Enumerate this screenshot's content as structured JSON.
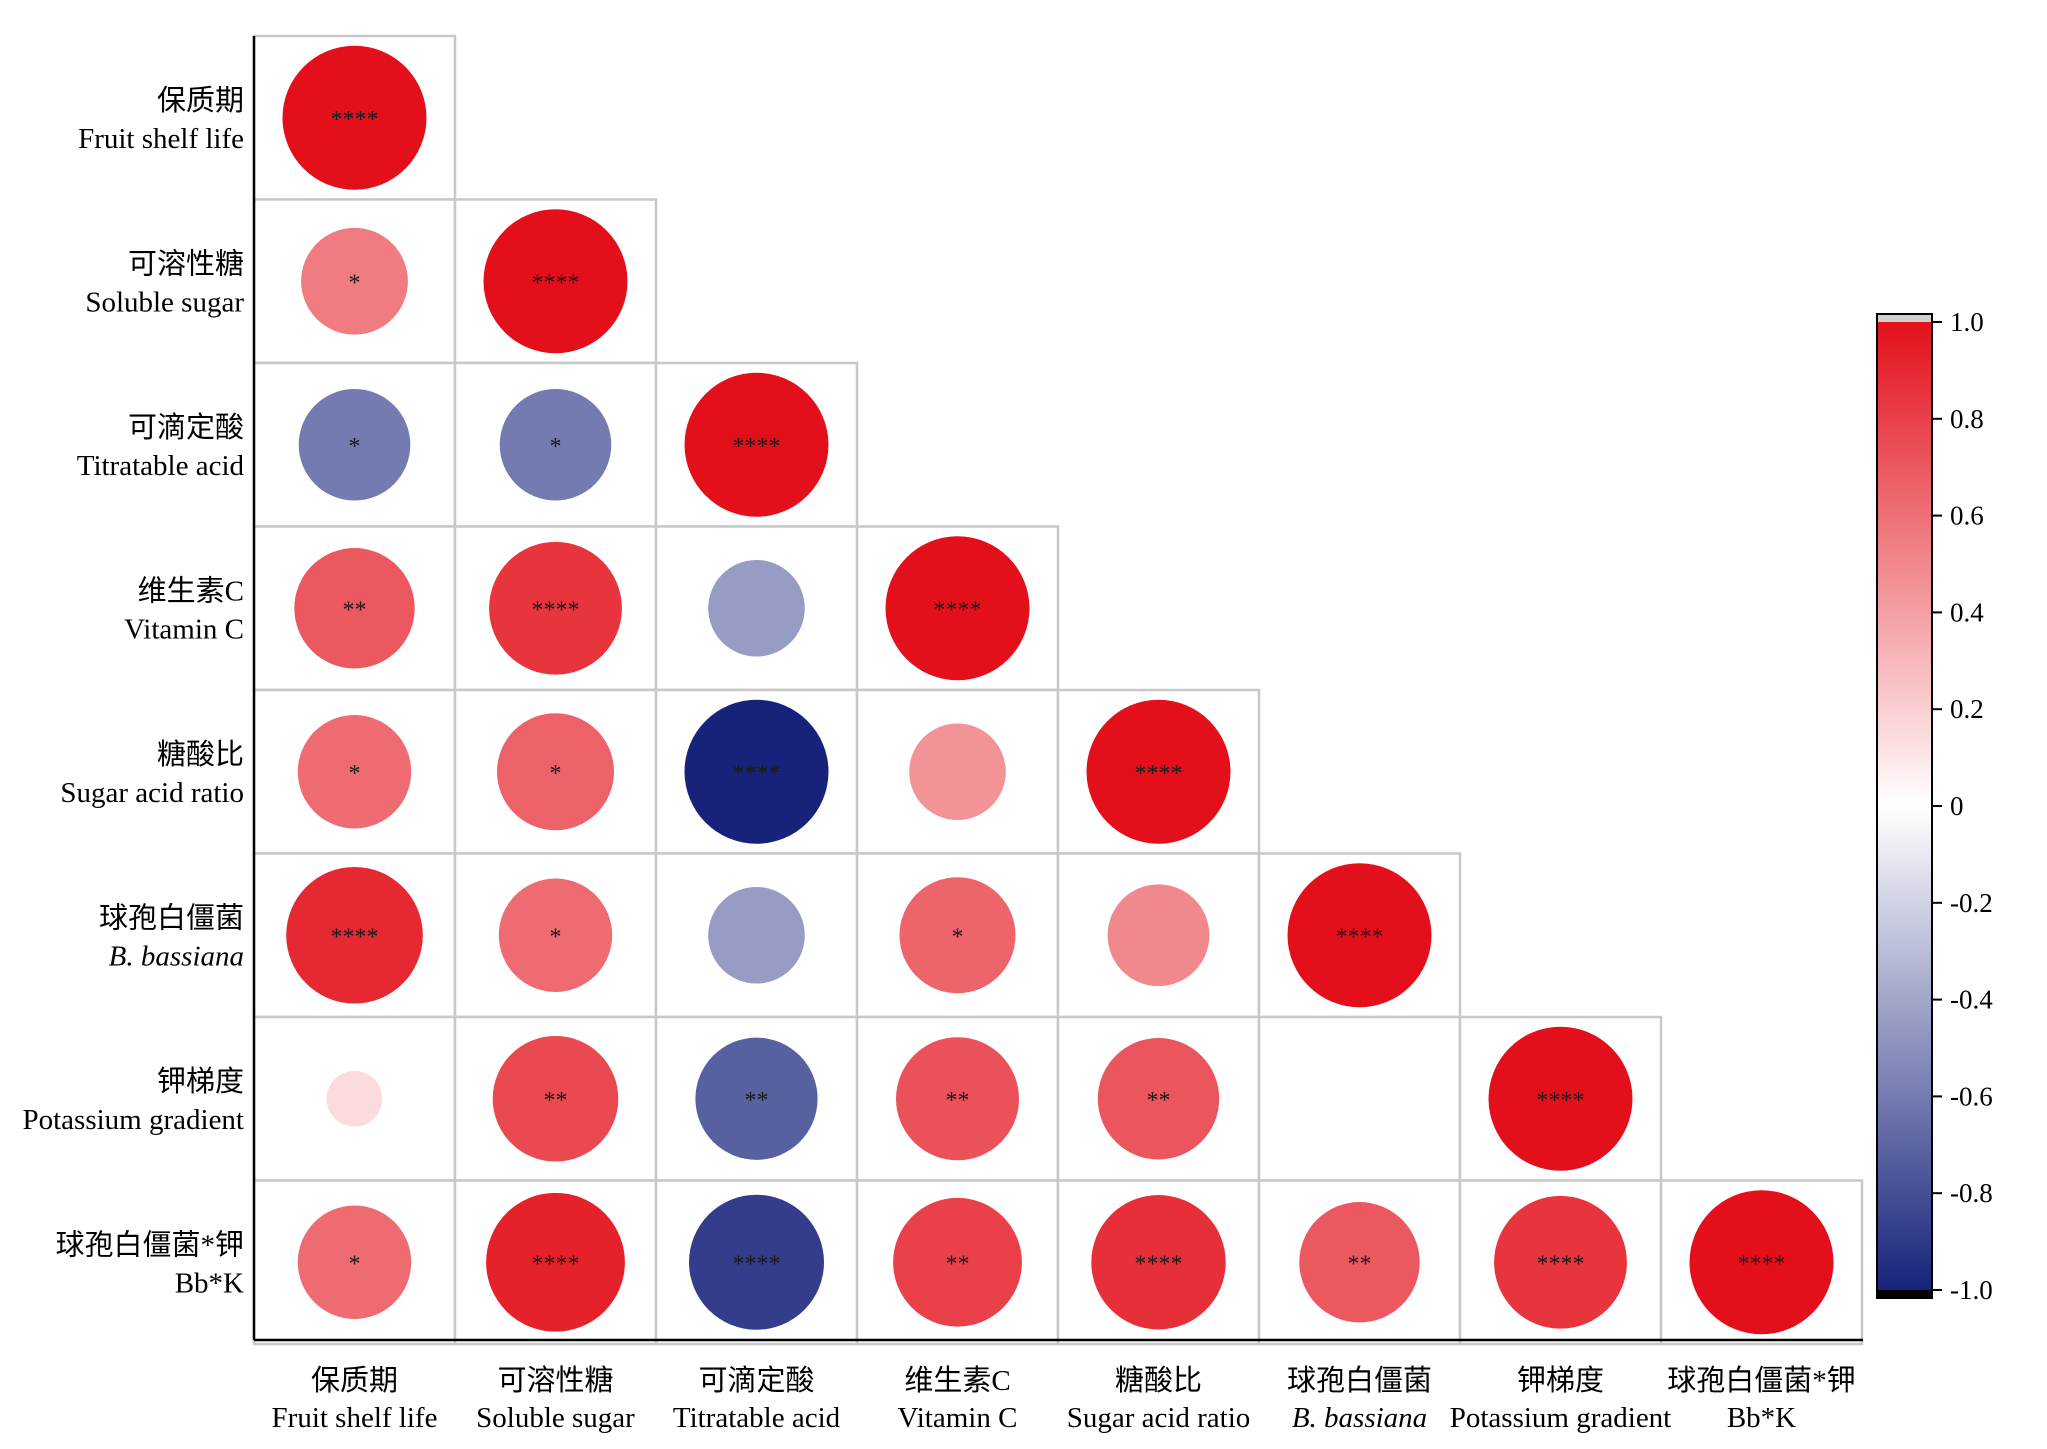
{
  "chart_data": {
    "type": "heatmap",
    "subtype": "correlation-lower-triangle-circles",
    "variables": [
      {
        "zh": "保质期",
        "en": "Fruit shelf life",
        "italic": false
      },
      {
        "zh": "可溶性糖",
        "en": "Soluble sugar",
        "italic": false
      },
      {
        "zh": "可滴定酸",
        "en": "Titratable acid",
        "italic": false
      },
      {
        "zh": "维生素C",
        "en": "Vitamin C",
        "italic": false
      },
      {
        "zh": "糖酸比",
        "en": "Sugar acid ratio",
        "italic": false
      },
      {
        "zh": "球孢白僵菌",
        "en": "B. bassiana",
        "italic": true
      },
      {
        "zh": "钾梯度",
        "en": "Potassium gradient",
        "italic": false
      },
      {
        "zh": "球孢白僵菌*钾",
        "en": "Bb*K",
        "italic": false
      }
    ],
    "cells": [
      {
        "row": 0,
        "col": 0,
        "value": 1.0,
        "sig": "****"
      },
      {
        "row": 1,
        "col": 0,
        "value": 0.55,
        "sig": "*"
      },
      {
        "row": 1,
        "col": 1,
        "value": 1.0,
        "sig": "****"
      },
      {
        "row": 2,
        "col": 0,
        "value": -0.6,
        "sig": "*"
      },
      {
        "row": 2,
        "col": 1,
        "value": -0.6,
        "sig": "*"
      },
      {
        "row": 2,
        "col": 2,
        "value": 1.0,
        "sig": "****"
      },
      {
        "row": 3,
        "col": 0,
        "value": 0.7,
        "sig": "**"
      },
      {
        "row": 3,
        "col": 1,
        "value": 0.85,
        "sig": "****"
      },
      {
        "row": 3,
        "col": 2,
        "value": -0.45,
        "sig": ""
      },
      {
        "row": 3,
        "col": 3,
        "value": 1.0,
        "sig": "****"
      },
      {
        "row": 4,
        "col": 0,
        "value": 0.62,
        "sig": "*"
      },
      {
        "row": 4,
        "col": 1,
        "value": 0.66,
        "sig": "*"
      },
      {
        "row": 4,
        "col": 2,
        "value": -1.0,
        "sig": "****"
      },
      {
        "row": 4,
        "col": 3,
        "value": 0.45,
        "sig": ""
      },
      {
        "row": 4,
        "col": 4,
        "value": 1.0,
        "sig": "****"
      },
      {
        "row": 5,
        "col": 0,
        "value": 0.9,
        "sig": "****"
      },
      {
        "row": 5,
        "col": 1,
        "value": 0.62,
        "sig": "*"
      },
      {
        "row": 5,
        "col": 2,
        "value": -0.45,
        "sig": ""
      },
      {
        "row": 5,
        "col": 3,
        "value": 0.65,
        "sig": "*"
      },
      {
        "row": 5,
        "col": 4,
        "value": 0.5,
        "sig": ""
      },
      {
        "row": 5,
        "col": 5,
        "value": 1.0,
        "sig": "****"
      },
      {
        "row": 6,
        "col": 0,
        "value": 0.15,
        "sig": ""
      },
      {
        "row": 6,
        "col": 1,
        "value": 0.76,
        "sig": "**"
      },
      {
        "row": 6,
        "col": 2,
        "value": -0.72,
        "sig": "**"
      },
      {
        "row": 6,
        "col": 3,
        "value": 0.73,
        "sig": "**"
      },
      {
        "row": 6,
        "col": 4,
        "value": 0.71,
        "sig": "**"
      },
      {
        "row": 6,
        "col": 5,
        "value": 0.0,
        "sig": ""
      },
      {
        "row": 6,
        "col": 6,
        "value": 1.0,
        "sig": "****"
      },
      {
        "row": 7,
        "col": 0,
        "value": 0.62,
        "sig": "*"
      },
      {
        "row": 7,
        "col": 1,
        "value": 0.93,
        "sig": "****"
      },
      {
        "row": 7,
        "col": 2,
        "value": -0.88,
        "sig": "****"
      },
      {
        "row": 7,
        "col": 3,
        "value": 0.8,
        "sig": "**"
      },
      {
        "row": 7,
        "col": 4,
        "value": 0.87,
        "sig": "****"
      },
      {
        "row": 7,
        "col": 5,
        "value": 0.7,
        "sig": "**"
      },
      {
        "row": 7,
        "col": 6,
        "value": 0.85,
        "sig": "****"
      },
      {
        "row": 7,
        "col": 7,
        "value": 1.0,
        "sig": "****"
      }
    ],
    "colorbar": {
      "min": -1.0,
      "max": 1.0,
      "ticks": [
        "1.0",
        "0.8",
        "0.6",
        "0.4",
        "0.2",
        "0",
        "-0.2",
        "-0.4",
        "-0.6",
        "-0.8",
        "-1.0"
      ],
      "colors": {
        "positive": "#e3101b",
        "zero": "#ffffff",
        "negative": "#17237b"
      }
    },
    "legend_placement": "right"
  }
}
